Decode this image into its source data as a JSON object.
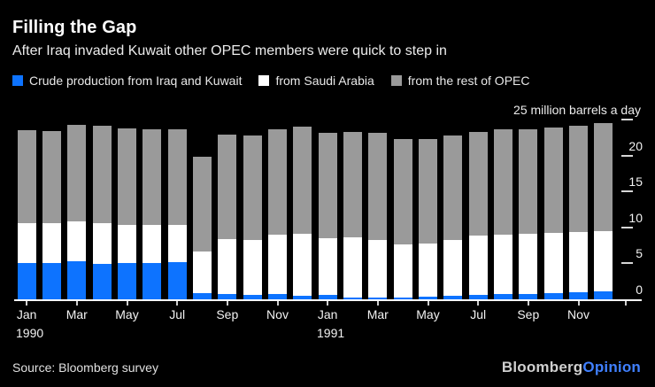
{
  "header": {
    "title": "Filling the Gap",
    "subtitle": "After Iraq invaded Kuwait other OPEC members were quick to step in"
  },
  "legend": {
    "items": [
      {
        "label": "Crude production from Iraq and Kuwait",
        "color": "#0d73ff"
      },
      {
        "label": "from Saudi Arabia",
        "color": "#ffffff"
      },
      {
        "label": "from the rest of OPEC",
        "color": "#9a9a9a"
      }
    ]
  },
  "chart_data": {
    "type": "bar",
    "stacked": true,
    "title": "Filling the Gap",
    "subtitle": "After Iraq invaded Kuwait other OPEC members were quick to step in",
    "unit_label": "25 million barrels a day",
    "ylabel": "million barrels a day",
    "ylim": [
      0,
      25
    ],
    "yticks": [
      0,
      5,
      10,
      15,
      20,
      25
    ],
    "ytick_labels_shown": [
      "0",
      "5",
      "10",
      "15",
      "20"
    ],
    "grid": false,
    "legend_position": "top",
    "categories": [
      "Jan 1990",
      "Feb 1990",
      "Mar 1990",
      "Apr 1990",
      "May 1990",
      "Jun 1990",
      "Jul 1990",
      "Aug 1990",
      "Sep 1990",
      "Oct 1990",
      "Nov 1990",
      "Dec 1990",
      "Jan 1991",
      "Feb 1991",
      "Mar 1991",
      "Apr 1991",
      "May 1991",
      "Jun 1991",
      "Jul 1991",
      "Aug 1991",
      "Sep 1991",
      "Oct 1991",
      "Nov 1991",
      "Dec 1991"
    ],
    "series": [
      {
        "name": "Crude production from Iraq and Kuwait",
        "key": "iraq-kuwait",
        "color": "#0d73ff",
        "values": [
          5.0,
          5.0,
          5.3,
          4.9,
          5.0,
          5.0,
          5.2,
          0.9,
          0.8,
          0.6,
          0.7,
          0.5,
          0.6,
          0.3,
          0.2,
          0.2,
          0.4,
          0.5,
          0.6,
          0.7,
          0.8,
          0.9,
          1.0,
          1.1
        ]
      },
      {
        "name": "from Saudi Arabia",
        "key": "saudi-arabia",
        "color": "#ffffff",
        "values": [
          5.6,
          5.6,
          5.5,
          5.7,
          5.4,
          5.3,
          5.2,
          5.7,
          7.6,
          7.7,
          8.3,
          8.6,
          7.9,
          8.3,
          8.1,
          7.5,
          7.4,
          7.8,
          8.3,
          8.3,
          8.3,
          8.4,
          8.4,
          8.4
        ]
      },
      {
        "name": "from the rest of OPEC",
        "key": "rest-of-opec",
        "color": "#9a9a9a",
        "values": [
          12.9,
          12.8,
          13.5,
          13.6,
          13.4,
          13.3,
          13.3,
          13.2,
          14.5,
          14.5,
          14.7,
          14.9,
          14.6,
          14.7,
          14.9,
          14.6,
          14.5,
          14.5,
          14.4,
          14.6,
          14.5,
          14.6,
          14.7,
          15.0
        ]
      }
    ],
    "x_labels": [
      {
        "index": 0,
        "month": "Jan",
        "year": "1990"
      },
      {
        "index": 2,
        "month": "Mar"
      },
      {
        "index": 4,
        "month": "May"
      },
      {
        "index": 6,
        "month": "Jul"
      },
      {
        "index": 8,
        "month": "Sep"
      },
      {
        "index": 10,
        "month": "Nov"
      },
      {
        "index": 12,
        "month": "Jan",
        "year": "1991"
      },
      {
        "index": 14,
        "month": "Mar"
      },
      {
        "index": 16,
        "month": "May"
      },
      {
        "index": 18,
        "month": "Jul"
      },
      {
        "index": 20,
        "month": "Sep"
      },
      {
        "index": 22,
        "month": "Nov"
      }
    ]
  },
  "footer": {
    "source": "Source: Bloomberg survey",
    "logo": {
      "bloomberg": "Bloomberg",
      "opinion": "Opinion"
    }
  },
  "colors": {
    "background": "#000000",
    "title": "#ffffff",
    "subtitle": "#ececec",
    "axis_line": "#ffffff",
    "axis_text": "#f2f2f2",
    "tick": "#d6d6d6",
    "logo_bloomberg": "#cfcfcf",
    "logo_opinion": "#4080ff"
  }
}
